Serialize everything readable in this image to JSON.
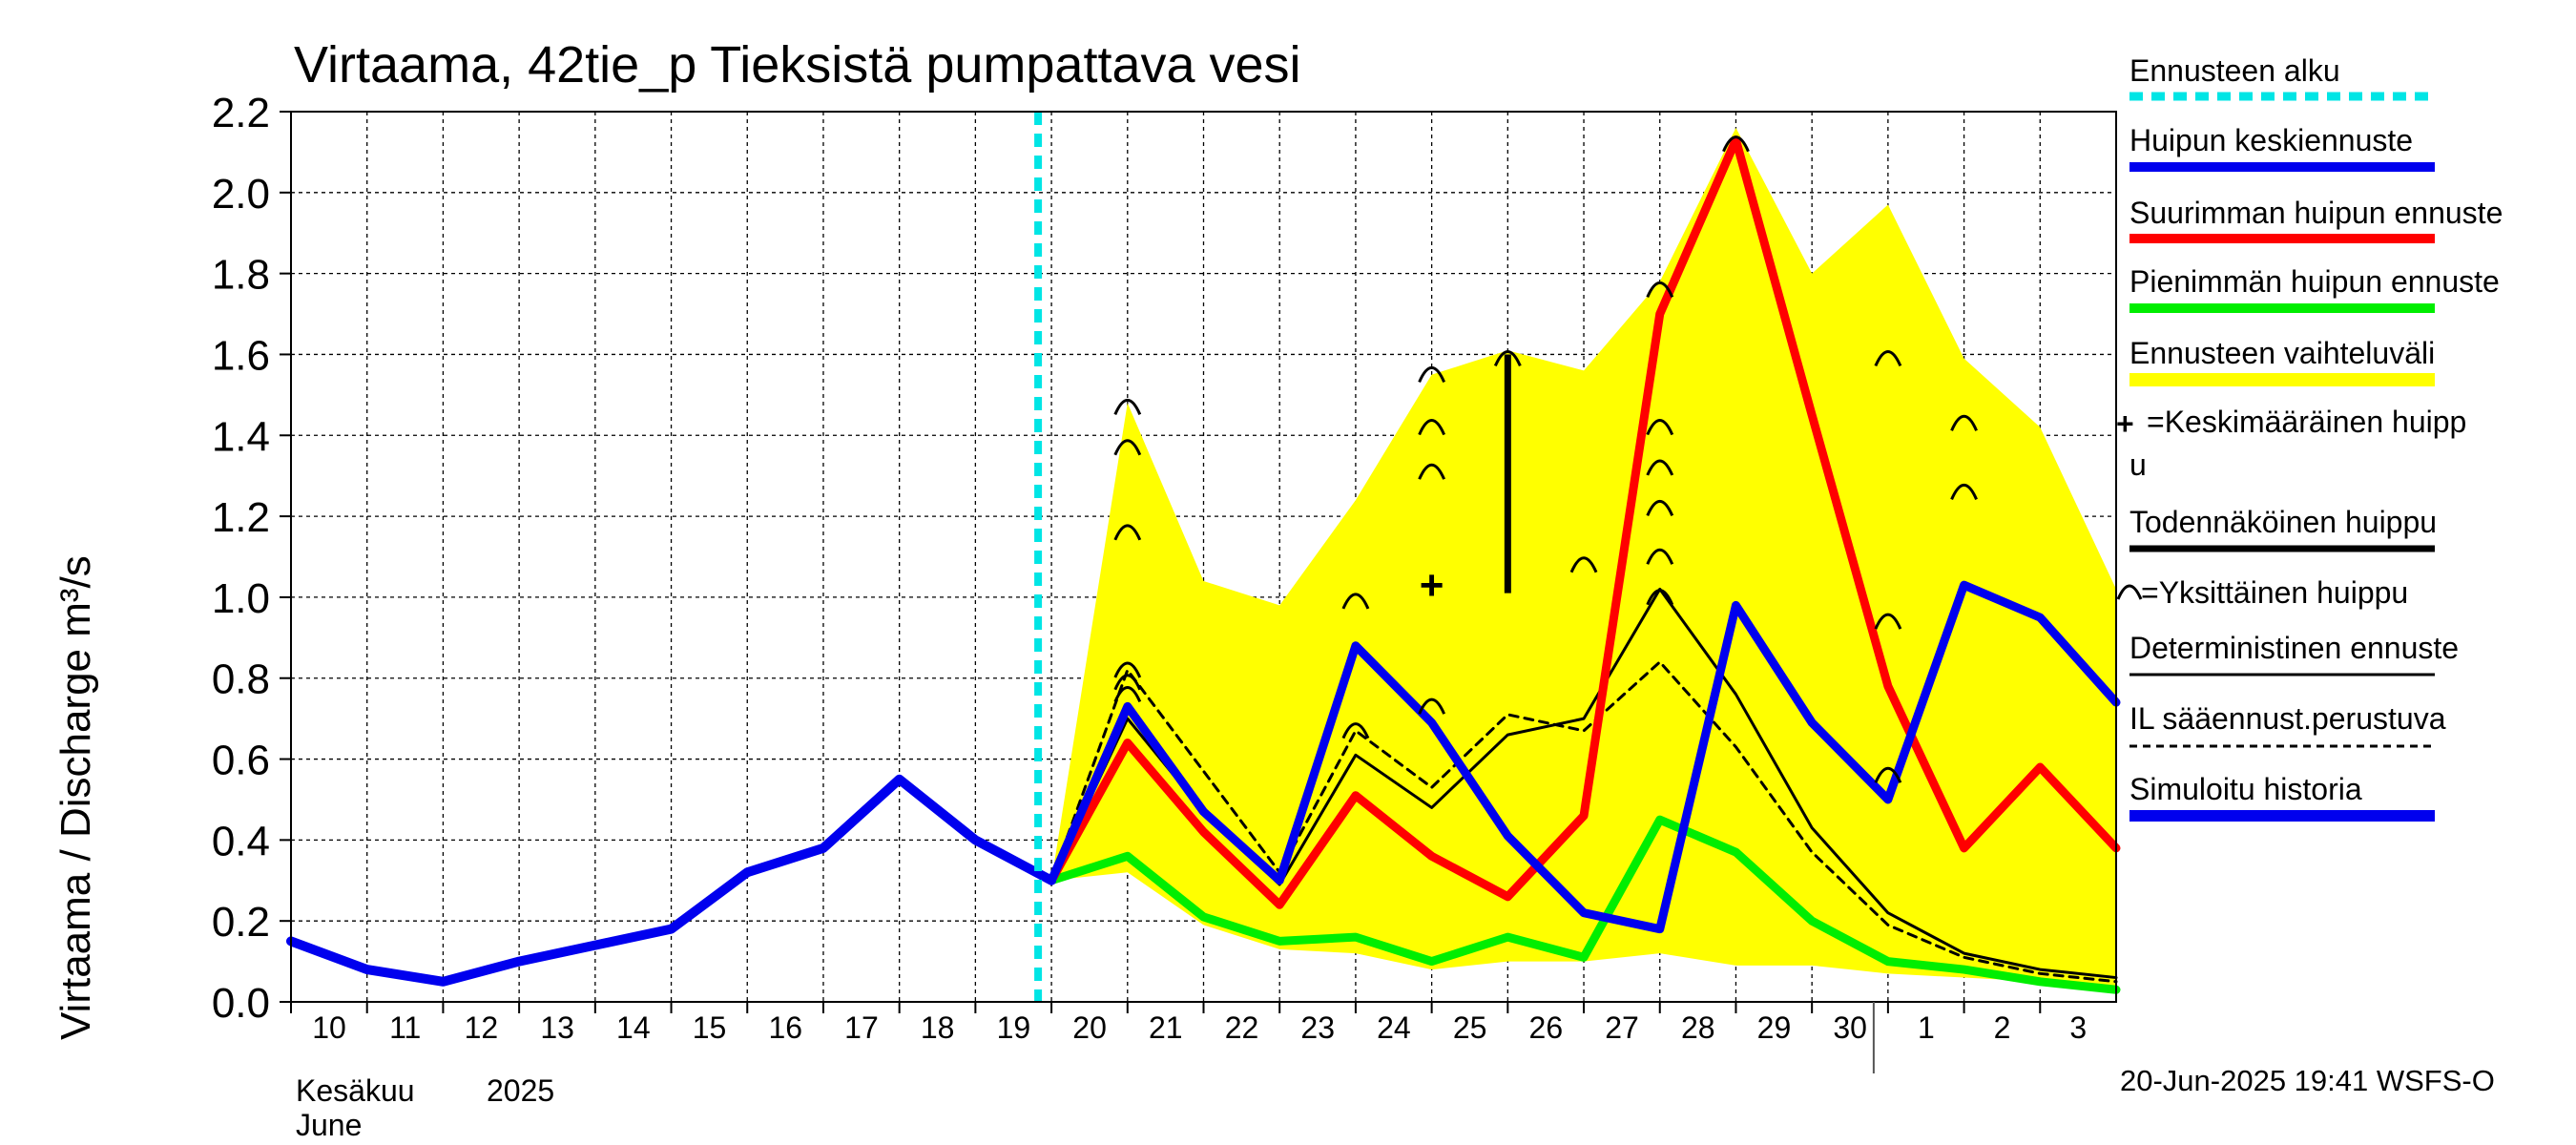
{
  "chart_data": {
    "type": "line",
    "title": "Virtaama, 42tie_p Tieksistä pumpattava vesi",
    "ylabel": "Virtaama / Discharge    m³/s",
    "ylim": [
      0,
      2.2
    ],
    "yticks": [
      "0.0",
      "0.2",
      "0.4",
      "0.6",
      "0.8",
      "1.0",
      "1.2",
      "1.4",
      "1.6",
      "1.8",
      "2.0",
      "2.2"
    ],
    "x_day_labels": [
      "10",
      "11",
      "12",
      "13",
      "14",
      "15",
      "16",
      "17",
      "18",
      "19",
      "20",
      "21",
      "22",
      "23",
      "24",
      "25",
      "26",
      "27",
      "28",
      "29",
      "30",
      "1",
      "2",
      "3"
    ],
    "month_label_fi": "Kesäkuu",
    "year_label": "2025",
    "month_label_en": "June",
    "forecast_start_day": 20,
    "series": [
      {
        "name": "Simuloitu historia",
        "color": "#0000ee",
        "x": [
          10,
          11,
          12,
          13,
          14,
          15,
          16,
          17,
          18,
          19,
          20
        ],
        "values": [
          0.15,
          0.08,
          0.05,
          0.1,
          0.14,
          0.18,
          0.32,
          0.38,
          0.55,
          0.4,
          0.3
        ]
      },
      {
        "name": "Huipun keskiennuste",
        "color": "#0000ee",
        "x": [
          20,
          21,
          22,
          23,
          24,
          25,
          26,
          27,
          28,
          29,
          30,
          31,
          32,
          33,
          34
        ],
        "values": [
          0.3,
          0.73,
          0.47,
          0.3,
          0.88,
          0.69,
          0.41,
          0.22,
          0.18,
          0.98,
          0.69,
          0.5,
          1.03,
          0.95,
          0.74
        ]
      },
      {
        "name": "Suurimman huipun ennuste",
        "color": "#ff0000",
        "x": [
          20,
          21,
          22,
          23,
          24,
          25,
          26,
          27,
          28,
          29,
          30,
          31,
          32,
          33,
          34
        ],
        "values": [
          0.3,
          0.64,
          0.42,
          0.24,
          0.51,
          0.36,
          0.26,
          0.46,
          1.7,
          2.13,
          1.45,
          0.78,
          0.38,
          0.58,
          0.38
        ]
      },
      {
        "name": "Pienimmän huipun ennuste",
        "color": "#00ee00",
        "x": [
          20,
          21,
          22,
          23,
          24,
          25,
          26,
          27,
          28,
          29,
          30,
          31,
          32,
          33,
          34
        ],
        "values": [
          0.3,
          0.36,
          0.21,
          0.15,
          0.16,
          0.1,
          0.16,
          0.11,
          0.45,
          0.37,
          0.2,
          0.1,
          0.08,
          0.05,
          0.03
        ]
      },
      {
        "name": "Deterministinen ennuste",
        "color": "#000000",
        "x": [
          20,
          21,
          22,
          23,
          24,
          25,
          26,
          27,
          28,
          29,
          30,
          31,
          32,
          33,
          34
        ],
        "values": [
          0.3,
          0.7,
          0.47,
          0.29,
          0.61,
          0.48,
          0.66,
          0.7,
          1.02,
          0.76,
          0.43,
          0.22,
          0.12,
          0.08,
          0.06
        ]
      },
      {
        "name": "IL sääennust.perustuva",
        "color": "#000000",
        "dashed": true,
        "x": [
          20,
          21,
          22,
          23,
          24,
          25,
          26,
          27,
          28,
          29,
          30,
          31,
          32,
          33,
          34
        ],
        "values": [
          0.3,
          0.82,
          0.57,
          0.32,
          0.67,
          0.53,
          0.71,
          0.67,
          0.84,
          0.63,
          0.37,
          0.19,
          0.11,
          0.07,
          0.05
        ]
      }
    ],
    "band": {
      "name": "Ennusteen vaihteluväli",
      "color": "#ffff00",
      "x": [
        20,
        21,
        22,
        23,
        24,
        25,
        26,
        27,
        28,
        29,
        30,
        31,
        32,
        33,
        34
      ],
      "upper": [
        0.3,
        1.48,
        1.04,
        0.98,
        1.24,
        1.55,
        1.61,
        1.56,
        1.78,
        2.16,
        1.8,
        1.97,
        1.59,
        1.42,
        1.02
      ],
      "lower": [
        0.3,
        0.32,
        0.19,
        0.13,
        0.12,
        0.08,
        0.1,
        0.1,
        0.12,
        0.09,
        0.09,
        0.07,
        0.06,
        0.05,
        0.03
      ]
    },
    "individual_peaks": [
      {
        "x": 21,
        "y": 1.48
      },
      {
        "x": 21,
        "y": 1.38
      },
      {
        "x": 21,
        "y": 1.17
      },
      {
        "x": 21,
        "y": 0.83
      },
      {
        "x": 21,
        "y": 0.8
      },
      {
        "x": 21,
        "y": 0.77
      },
      {
        "x": 24,
        "y": 1.0
      },
      {
        "x": 24,
        "y": 0.68
      },
      {
        "x": 25,
        "y": 1.56
      },
      {
        "x": 25,
        "y": 1.43
      },
      {
        "x": 25,
        "y": 1.32
      },
      {
        "x": 25,
        "y": 0.74
      },
      {
        "x": 26,
        "y": 1.6
      },
      {
        "x": 27,
        "y": 1.09
      },
      {
        "x": 28,
        "y": 1.77
      },
      {
        "x": 28,
        "y": 1.43
      },
      {
        "x": 28,
        "y": 1.33
      },
      {
        "x": 28,
        "y": 1.23
      },
      {
        "x": 28,
        "y": 1.11
      },
      {
        "x": 28,
        "y": 1.01
      },
      {
        "x": 29,
        "y": 2.13
      },
      {
        "x": 31,
        "y": 1.6
      },
      {
        "x": 31,
        "y": 0.95
      },
      {
        "x": 31,
        "y": 0.57
      },
      {
        "x": 32,
        "y": 1.44
      },
      {
        "x": 32,
        "y": 1.27
      }
    ],
    "mean_peak": {
      "x": 25,
      "y": 1.03
    },
    "probable_peak": {
      "x": 26,
      "y_low": 1.01,
      "y_high": 1.6
    }
  },
  "legend": {
    "forecast_start": "Ennusteen alku",
    "mean_forecast": "Huipun keskiennuste",
    "max_forecast": "Suurimman huipun ennuste",
    "min_forecast": "Pienimmän huipun ennuste",
    "range": "Ennusteen vaihteluväli",
    "mean_peak_line1": "=Keskimääräinen huipp",
    "mean_peak_line2": "u",
    "probable_peak": "Todennäköinen huippu",
    "single_peak": "=Yksittäinen huippu",
    "deterministic": "Deterministinen ennuste",
    "il_weather": "IL sääennust.perustuva",
    "sim_history": "Simuloitu historia"
  },
  "colors": {
    "forecast_start": "#00e5e5",
    "mean": "#0000ee",
    "max": "#ff0000",
    "min": "#00ee00",
    "range": "#ffff00",
    "black": "#000000"
  },
  "footer": "20-Jun-2025 19:41 WSFS-O"
}
